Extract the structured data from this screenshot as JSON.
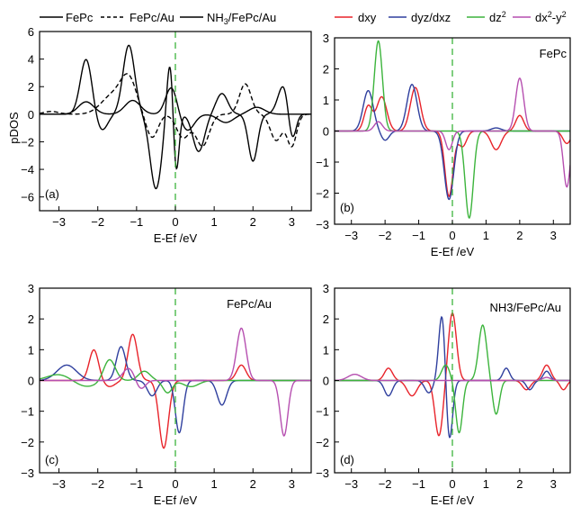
{
  "colors": {
    "dxy": "#e8232a",
    "dyz_dxz": "#2f3f9e",
    "dz2": "#3cb43c",
    "dx2y2": "#b64fb0",
    "black": "#000000",
    "fermi_line": "#3cb43c"
  },
  "legend_a": {
    "fepc": "FePc",
    "fepc_au": "FePc/Au",
    "nh3_prefix": "NH",
    "nh3_sub": "3",
    "nh3_suffix": "/FePc/Au"
  },
  "legend_b": {
    "dxy": "dxy",
    "dyz_dxz": "dyz/dxz",
    "dz2_base": "dz",
    "dz2_sup": "2",
    "dx2_base": "dx",
    "dx2_sup1": "2",
    "dx2_mid": "-y",
    "dx2_sup2": "2"
  },
  "chart_data": [
    {
      "type": "line",
      "panel": "(a)",
      "xlabel": "E-Ef /eV",
      "ylabel": "pDOS",
      "xlim": [
        -3.5,
        3.5
      ],
      "ylim": [
        -7,
        6
      ],
      "xticks": [
        -3,
        -2,
        -1,
        0,
        1,
        2,
        3
      ],
      "yticks": [
        -6,
        -4,
        -2,
        0,
        2,
        4,
        6
      ],
      "vline_x": 0,
      "series": [
        {
          "name": "FePc",
          "style": "solid",
          "peaks": [
            [
              -2.3,
              0.9,
              0.2
            ],
            [
              -1.1,
              1.0,
              0.2
            ],
            [
              -0.1,
              2.0,
              0.15
            ],
            [
              0.3,
              -1.2,
              0.18
            ],
            [
              1.3,
              -0.6,
              0.2
            ],
            [
              2.1,
              0.5,
              0.2
            ]
          ]
        },
        {
          "name": "FePc/Au",
          "style": "dashed",
          "peaks": [
            [
              -3.2,
              0.2,
              0.2
            ],
            [
              -1.6,
              1.4,
              0.3
            ],
            [
              -1.2,
              2.3,
              0.2
            ],
            [
              -0.6,
              -1.7,
              0.15
            ],
            [
              0.2,
              -1.7,
              0.17
            ],
            [
              0.7,
              -2.3,
              0.17
            ],
            [
              1.8,
              2.2,
              0.15
            ],
            [
              2.6,
              -1.9,
              0.15
            ],
            [
              3.0,
              -2.3,
              0.12
            ]
          ]
        },
        {
          "name": "NH3/FePc/Au",
          "style": "solid",
          "peaks": [
            [
              -2.3,
              4.0,
              0.15
            ],
            [
              -1.9,
              -1.2,
              0.15
            ],
            [
              -1.2,
              5.0,
              0.15
            ],
            [
              -0.5,
              -5.4,
              0.15
            ],
            [
              -0.1,
              5.6,
              0.1
            ],
            [
              0.0,
              -6.8,
              0.08
            ],
            [
              0.6,
              -2.7,
              0.15
            ],
            [
              1.2,
              1.5,
              0.15
            ],
            [
              2.0,
              -3.4,
              0.12
            ],
            [
              2.8,
              2.2,
              0.15
            ],
            [
              3.0,
              -2.4,
              0.1
            ]
          ]
        }
      ]
    },
    {
      "type": "line",
      "panel": "(b)",
      "annotation": "FePc",
      "xlabel": "E-Ef /eV",
      "xlim": [
        -3.5,
        3.5
      ],
      "ylim": [
        -3,
        3
      ],
      "xticks": [
        -3,
        -2,
        -1,
        0,
        1,
        2,
        3
      ],
      "yticks": [
        -3,
        -2,
        -1,
        0,
        1,
        2,
        3
      ],
      "vline_x": 0,
      "series": [
        {
          "name": "dxy",
          "color_key": "dxy",
          "peaks": [
            [
              -2.5,
              0.8,
              0.12
            ],
            [
              -2.1,
              1.1,
              0.15
            ],
            [
              -1.1,
              1.4,
              0.15
            ],
            [
              -0.1,
              -2.1,
              0.12
            ],
            [
              0.3,
              -0.5,
              0.12
            ],
            [
              1.3,
              -0.6,
              0.15
            ],
            [
              2.0,
              0.5,
              0.12
            ],
            [
              3.4,
              -0.4,
              0.12
            ]
          ]
        },
        {
          "name": "dyz/dxz",
          "color_key": "dyz_dxz",
          "peaks": [
            [
              -2.5,
              1.3,
              0.15
            ],
            [
              -2.0,
              -0.3,
              0.12
            ],
            [
              -1.2,
              1.5,
              0.15
            ],
            [
              -0.1,
              -2.2,
              0.14
            ],
            [
              1.3,
              0.1,
              0.15
            ]
          ]
        },
        {
          "name": "dz2",
          "color_key": "dz2",
          "peaks": [
            [
              -2.2,
              2.9,
              0.12
            ],
            [
              0.5,
              -2.8,
              0.12
            ]
          ]
        },
        {
          "name": "dx2-y2",
          "color_key": "dx2y2",
          "peaks": [
            [
              -2.2,
              0.3,
              0.12
            ],
            [
              -0.1,
              -0.6,
              0.1
            ],
            [
              2.0,
              1.7,
              0.12
            ],
            [
              3.4,
              -1.8,
              0.1
            ]
          ]
        }
      ]
    },
    {
      "type": "line",
      "panel": "(c)",
      "annotation": "FePc/Au",
      "xlabel": "E-Ef /eV",
      "xlim": [
        -3.5,
        3.5
      ],
      "ylim": [
        -3,
        3
      ],
      "xticks": [
        -3,
        -2,
        -1,
        0,
        1,
        2,
        3
      ],
      "yticks": [
        -3,
        -2,
        -1,
        0,
        1,
        2,
        3
      ],
      "vline_x": 0,
      "series": [
        {
          "name": "dxy",
          "color_key": "dxy",
          "peaks": [
            [
              -2.1,
              1.0,
              0.12
            ],
            [
              -1.7,
              -0.2,
              0.15
            ],
            [
              -1.1,
              1.5,
              0.12
            ],
            [
              -0.3,
              -2.2,
              0.12
            ],
            [
              1.7,
              0.5,
              0.12
            ]
          ]
        },
        {
          "name": "dyz/dxz",
          "color_key": "dyz_dxz",
          "peaks": [
            [
              -2.8,
              0.5,
              0.25
            ],
            [
              -1.4,
              1.1,
              0.12
            ],
            [
              -0.6,
              -0.5,
              0.12
            ],
            [
              0.1,
              -1.7,
              0.1
            ],
            [
              1.2,
              -0.8,
              0.12
            ]
          ]
        },
        {
          "name": "dz2",
          "color_key": "dz2",
          "peaks": [
            [
              -3.0,
              0.2,
              0.3
            ],
            [
              -2.3,
              -0.2,
              0.3
            ],
            [
              -1.7,
              0.7,
              0.15
            ],
            [
              -0.8,
              0.3,
              0.15
            ],
            [
              -0.2,
              -0.4,
              0.12
            ],
            [
              0.4,
              -0.2,
              0.2
            ]
          ]
        },
        {
          "name": "dx2-y2",
          "color_key": "dx2y2",
          "peaks": [
            [
              -1.2,
              0.4,
              0.15
            ],
            [
              -0.9,
              -0.3,
              0.12
            ],
            [
              1.7,
              1.7,
              0.12
            ],
            [
              2.8,
              -1.8,
              0.1
            ]
          ]
        }
      ]
    },
    {
      "type": "line",
      "panel": "(d)",
      "annotation": "NH3/FePc/Au",
      "xlabel": "E-Ef /eV",
      "xlim": [
        -3.5,
        3.5
      ],
      "ylim": [
        -3,
        3
      ],
      "xticks": [
        -3,
        -2,
        -1,
        0,
        1,
        2,
        3
      ],
      "yticks": [
        -3,
        -2,
        -1,
        0,
        1,
        2,
        3
      ],
      "vline_x": 0,
      "series": [
        {
          "name": "dxy",
          "color_key": "dxy",
          "peaks": [
            [
              -1.9,
              0.4,
              0.12
            ],
            [
              -1.2,
              -0.5,
              0.15
            ],
            [
              -0.4,
              -1.8,
              0.12
            ],
            [
              0.0,
              2.2,
              0.12
            ],
            [
              2.2,
              -0.3,
              0.12
            ],
            [
              2.8,
              0.5,
              0.12
            ],
            [
              3.3,
              -0.3,
              0.1
            ]
          ]
        },
        {
          "name": "dyz/dxz",
          "color_key": "dyz_dxz",
          "peaks": [
            [
              -1.9,
              -0.5,
              0.12
            ],
            [
              -0.7,
              -0.4,
              0.12
            ],
            [
              -0.3,
              2.3,
              0.1
            ],
            [
              -0.1,
              -2.1,
              0.1
            ],
            [
              1.6,
              0.4,
              0.1
            ],
            [
              2.3,
              -0.3,
              0.1
            ],
            [
              2.8,
              0.3,
              0.1
            ]
          ]
        },
        {
          "name": "dz2",
          "color_key": "dz2",
          "peaks": [
            [
              -0.2,
              0.5,
              0.12
            ],
            [
              0.2,
              -1.7,
              0.1
            ],
            [
              0.9,
              1.8,
              0.12
            ],
            [
              1.3,
              -1.1,
              0.1
            ]
          ]
        },
        {
          "name": "dx2-y2",
          "color_key": "dx2y2",
          "peaks": [
            [
              -2.9,
              0.2,
              0.2
            ],
            [
              2.8,
              1.7,
              0.12
            ],
            [
              2.8,
              -1.6,
              0.12
            ]
          ]
        }
      ]
    }
  ]
}
